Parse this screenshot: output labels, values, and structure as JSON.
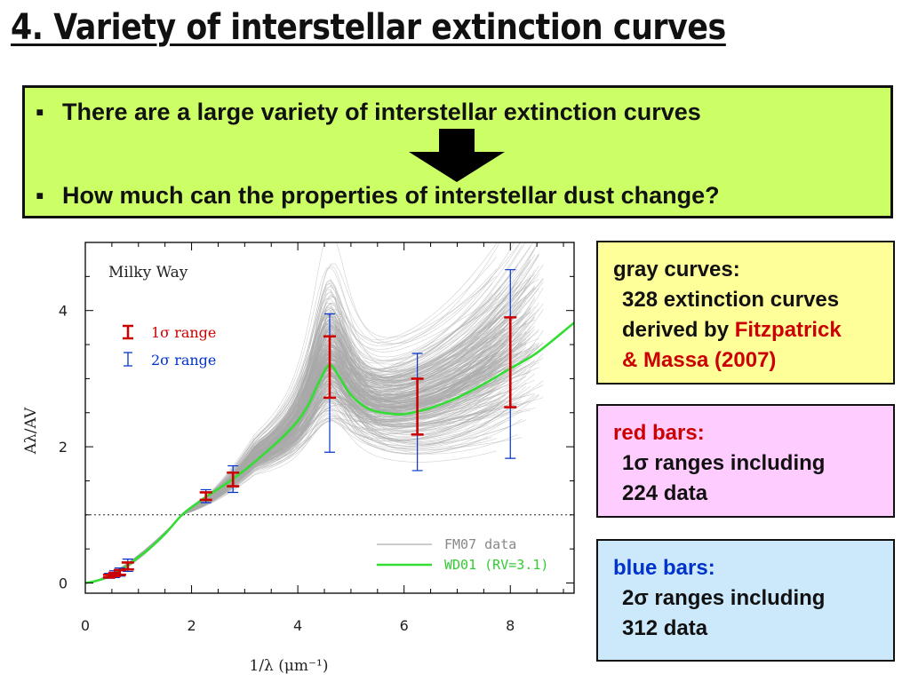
{
  "slide": {
    "title": "4. Variety of interstellar extinction curves"
  },
  "summary": {
    "bullet_symbol": "▪",
    "bullet_1": "There are a large variety of interstellar extinction curves",
    "bullet_2": "How much can the properties of interstellar dust change?",
    "arrow_icon": "down-arrow-icon"
  },
  "colors": {
    "summary_bg": "#ccff66",
    "gray_box_bg": "#ffff99",
    "red_box_bg": "#ffccff",
    "blue_box_bg": "#cce9fb",
    "red": "#cc0000",
    "blue": "#0033cc",
    "green": "#33dd33"
  },
  "boxes": {
    "gray": {
      "heading": "gray curves:",
      "line1": "328 extinction curves",
      "line2_prefix": "derived by ",
      "line2_highlight": "Fitzpatrick",
      "line3": "& Massa (2007)"
    },
    "red": {
      "heading": "red bars:",
      "line1": "1σ ranges including",
      "line2": "224 data"
    },
    "blue": {
      "heading": "blue bars:",
      "line1": "2σ ranges including",
      "line2": "312 data"
    }
  },
  "chart_data": {
    "type": "line",
    "panel_label": "Milky Way",
    "xlabel": "1/λ (μm⁻¹)",
    "ylabel": "Aλ/AV",
    "xlim": [
      0,
      9.2
    ],
    "ylim": [
      -0.15,
      5.0
    ],
    "xticks": [
      0,
      2,
      4,
      6,
      8
    ],
    "yticks": [
      0,
      2,
      4
    ],
    "reference_line_y": 1.0,
    "legend": {
      "placement": "bottom-right",
      "fm07": "FM07 data",
      "wd01": "WD01 (RV=3.1)"
    },
    "range_legend": {
      "placement": "top-left",
      "sigma1": "1σ range",
      "sigma2": "2σ range"
    },
    "gray_curve_count": 328,
    "wd01_curve": {
      "x": [
        0.0,
        0.2,
        0.4,
        0.6,
        0.8,
        1.0,
        1.2,
        1.5,
        1.82,
        2.1,
        2.3,
        2.6,
        2.8,
        3.1,
        3.4,
        3.7,
        4.0,
        4.2,
        4.4,
        4.6,
        4.8,
        5.0,
        5.3,
        5.6,
        6.0,
        6.5,
        7.0,
        7.5,
        8.0,
        8.5,
        9.2
      ],
      "y": [
        0.0,
        0.03,
        0.08,
        0.16,
        0.26,
        0.38,
        0.5,
        0.72,
        1.0,
        1.17,
        1.28,
        1.43,
        1.54,
        1.72,
        1.92,
        2.13,
        2.38,
        2.62,
        2.95,
        3.2,
        3.0,
        2.76,
        2.57,
        2.5,
        2.48,
        2.57,
        2.72,
        2.92,
        3.15,
        3.38,
        3.82
      ]
    },
    "sigma1_bars": [
      {
        "x": 0.45,
        "low": 0.08,
        "high": 0.12
      },
      {
        "x": 0.55,
        "low": 0.1,
        "high": 0.15
      },
      {
        "x": 0.65,
        "low": 0.12,
        "high": 0.19
      },
      {
        "x": 0.8,
        "low": 0.2,
        "high": 0.3
      },
      {
        "x": 2.27,
        "low": 1.22,
        "high": 1.33
      },
      {
        "x": 2.78,
        "low": 1.42,
        "high": 1.62
      },
      {
        "x": 4.6,
        "low": 2.72,
        "high": 3.62
      },
      {
        "x": 6.25,
        "low": 2.18,
        "high": 3.0
      },
      {
        "x": 8.0,
        "low": 2.58,
        "high": 3.9
      }
    ],
    "sigma2_bars": [
      {
        "x": 0.45,
        "low": 0.07,
        "high": 0.14
      },
      {
        "x": 0.55,
        "low": 0.08,
        "high": 0.18
      },
      {
        "x": 0.65,
        "low": 0.1,
        "high": 0.22
      },
      {
        "x": 0.8,
        "low": 0.17,
        "high": 0.35
      },
      {
        "x": 2.27,
        "low": 1.18,
        "high": 1.37
      },
      {
        "x": 2.78,
        "low": 1.33,
        "high": 1.72
      },
      {
        "x": 4.6,
        "low": 1.92,
        "high": 3.95
      },
      {
        "x": 6.25,
        "low": 1.65,
        "high": 3.37
      },
      {
        "x": 8.0,
        "low": 1.83,
        "high": 4.6
      }
    ]
  }
}
